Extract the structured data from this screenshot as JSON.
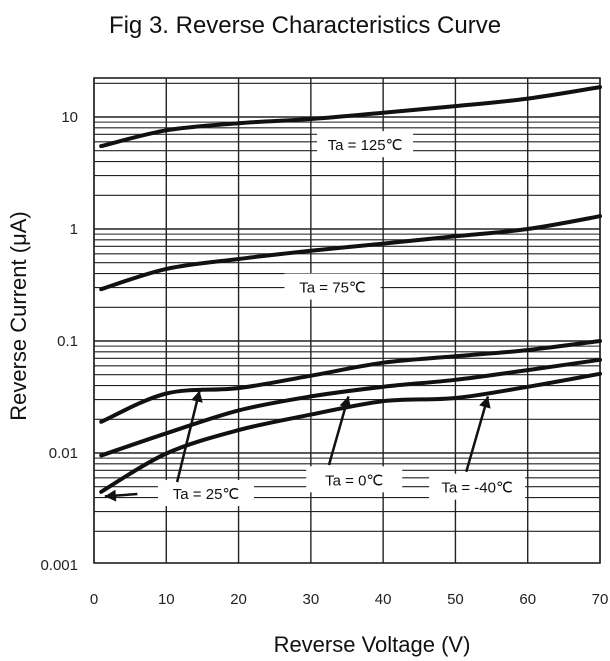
{
  "chart_data": {
    "type": "line",
    "title": "Fig 3. Reverse Characteristics Curve",
    "xlabel": "Reverse Voltage (V)",
    "ylabel": "Reverse Current (μA)",
    "xscale": "linear",
    "yscale": "log",
    "xlim": [
      0,
      70
    ],
    "ylim": [
      0.001,
      20
    ],
    "x_ticks": [
      "0",
      "10",
      "20",
      "30",
      "40",
      "50",
      "60",
      "70"
    ],
    "y_ticks": [
      "10",
      "1",
      "0.1",
      "0.01",
      "0.001"
    ],
    "grid": true,
    "series": [
      {
        "name": "Ta = 125℃",
        "x": [
          1,
          10,
          20,
          30,
          40,
          50,
          60,
          70
        ],
        "y": [
          5.5,
          7.6,
          8.8,
          9.6,
          10.9,
          12.5,
          14.6,
          18.5
        ]
      },
      {
        "name": "Ta = 75℃",
        "x": [
          1,
          10,
          20,
          30,
          40,
          50,
          60,
          70
        ],
        "y": [
          0.29,
          0.44,
          0.54,
          0.64,
          0.74,
          0.86,
          1.0,
          1.3
        ]
      },
      {
        "name": "Ta = 25℃",
        "x": [
          1,
          10,
          20,
          30,
          40,
          50,
          60,
          70
        ],
        "y": [
          0.019,
          0.034,
          0.038,
          0.049,
          0.064,
          0.073,
          0.083,
          0.1
        ]
      },
      {
        "name": "Ta = 0℃",
        "x": [
          1,
          10,
          20,
          30,
          40,
          50,
          60,
          70
        ],
        "y": [
          0.0095,
          0.015,
          0.024,
          0.032,
          0.039,
          0.045,
          0.055,
          0.068
        ]
      },
      {
        "name": "Ta = -40℃",
        "x": [
          1,
          10,
          20,
          30,
          40,
          50,
          60,
          70
        ],
        "y": [
          0.0045,
          0.0099,
          0.016,
          0.022,
          0.029,
          0.031,
          0.039,
          0.051
        ]
      }
    ],
    "annotations": [
      {
        "text": "Ta = 125℃",
        "x": 37.5,
        "y": 5.6
      },
      {
        "text": "Ta = 75℃",
        "x": 33,
        "y": 0.3
      },
      {
        "text": "Ta = 25℃",
        "x": 15.5,
        "y": 0.0043
      },
      {
        "text": "Ta = 0℃",
        "x": 36,
        "y": 0.0057
      },
      {
        "text": "Ta = -40℃",
        "x": 53,
        "y": 0.0049
      }
    ]
  }
}
